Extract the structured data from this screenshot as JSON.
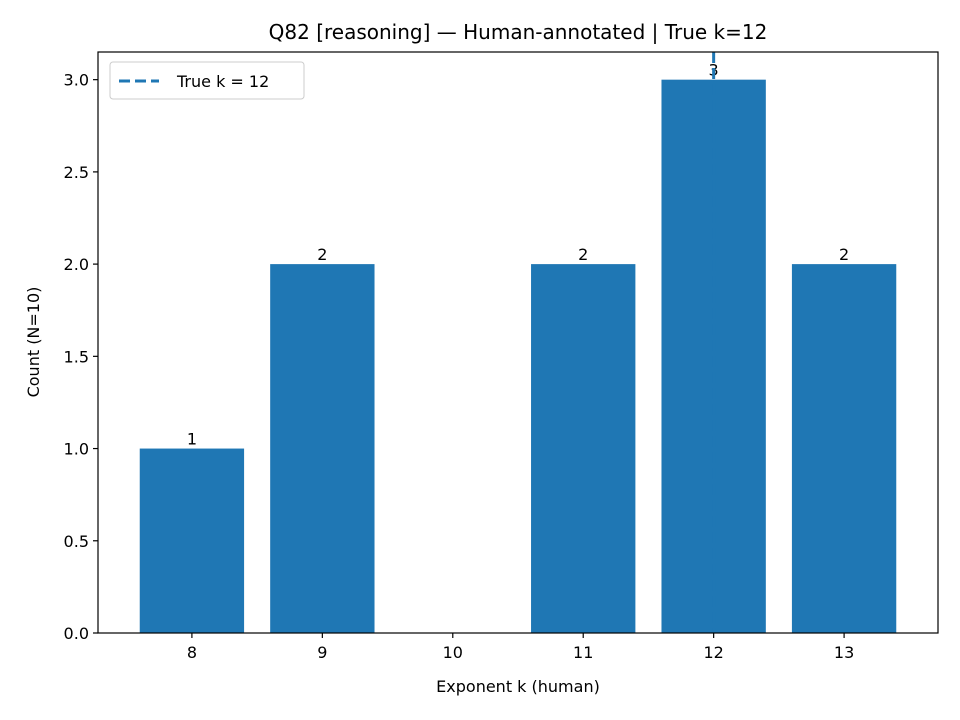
{
  "chart_data": {
    "type": "bar",
    "title": "Q82 [reasoning] — Human-annotated | True k=12",
    "xlabel": "Exponent k (human)",
    "ylabel": "Count (N=10)",
    "categories": [
      8,
      9,
      10,
      11,
      12,
      13
    ],
    "values": [
      1,
      2,
      0,
      2,
      3,
      2
    ],
    "bar_labels": [
      "1",
      "2",
      "",
      "2",
      "3",
      "2"
    ],
    "xlim": [
      7.28,
      13.72
    ],
    "ylim": [
      0,
      3.15
    ],
    "yticks": [
      0.0,
      0.5,
      1.0,
      1.5,
      2.0,
      2.5,
      3.0
    ],
    "ytick_labels": [
      "0.0",
      "0.5",
      "1.0",
      "1.5",
      "2.0",
      "2.5",
      "3.0"
    ],
    "xtick_labels": [
      "8",
      "9",
      "10",
      "11",
      "12",
      "13"
    ],
    "reference_line": {
      "x": 12,
      "label": "True k = 12",
      "style": "dashed"
    },
    "legend": {
      "entries": [
        "True k = 12"
      ],
      "placement": "top-left"
    },
    "grid": false,
    "bar_color": "#1f77b4",
    "line_color": "#1f77b4"
  }
}
